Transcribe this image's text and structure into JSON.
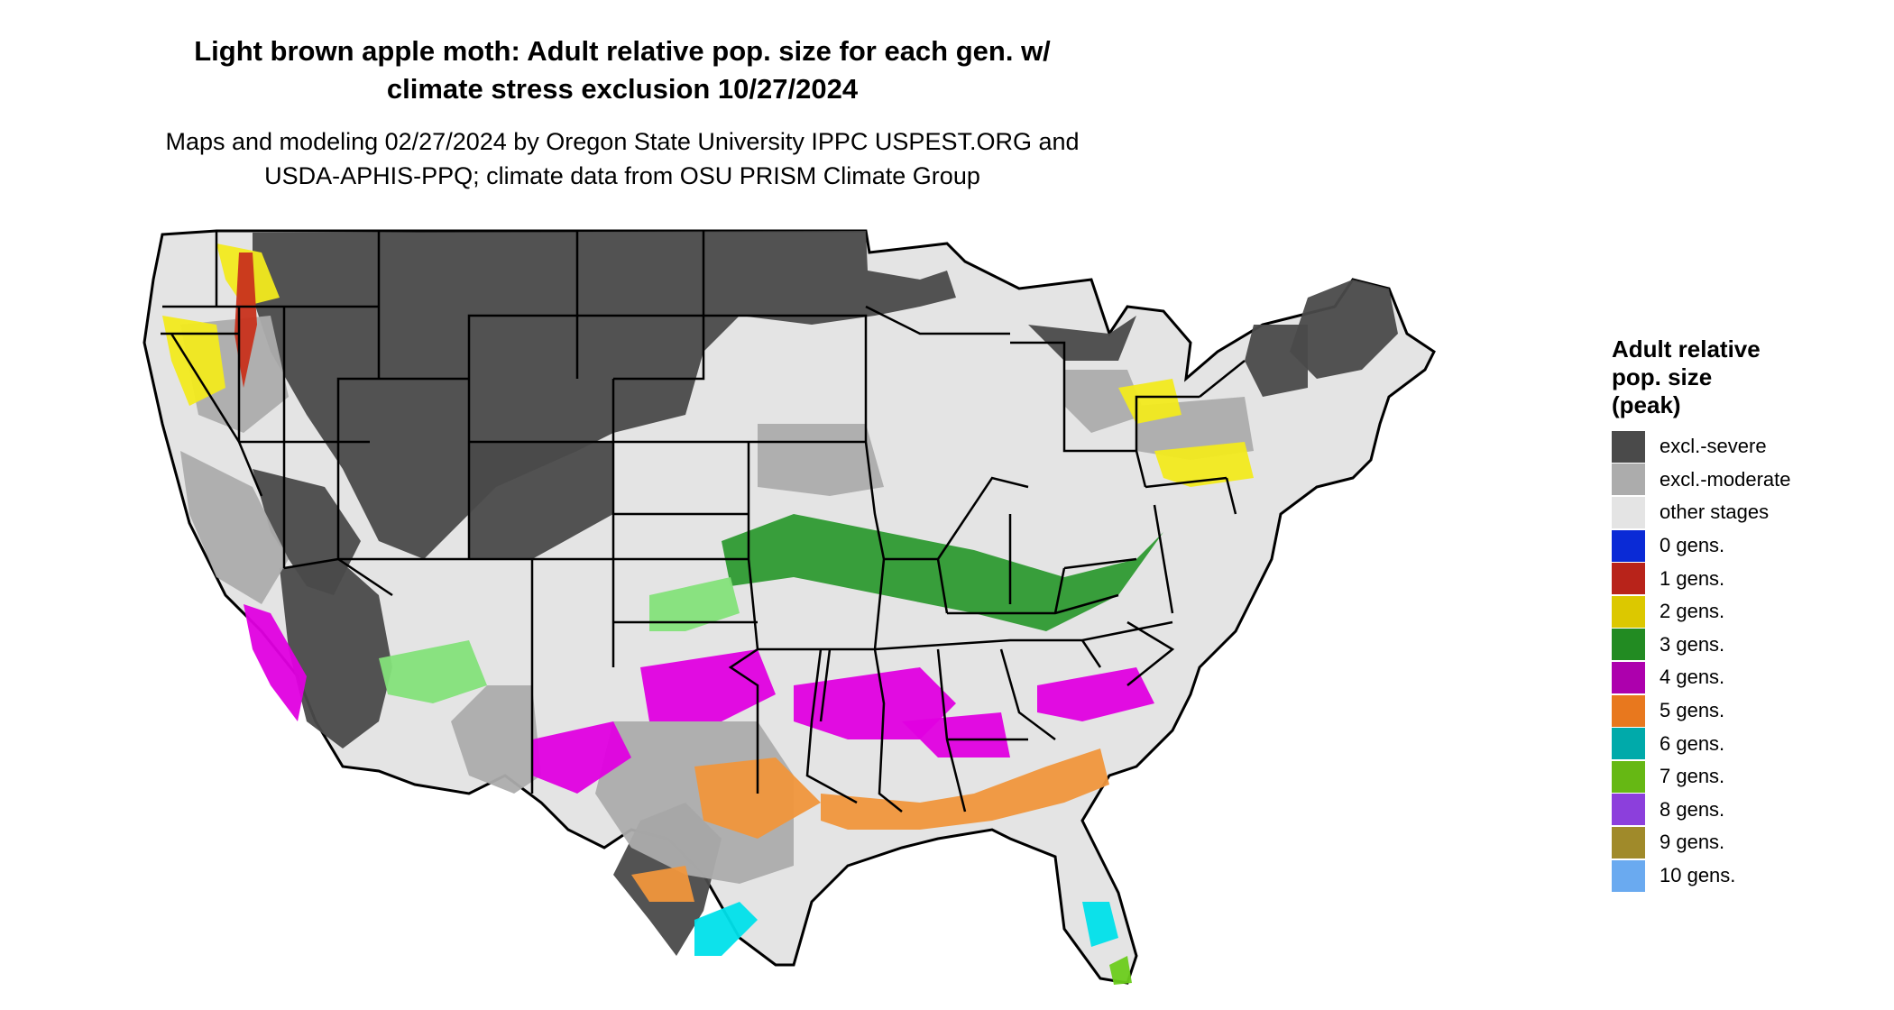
{
  "title": {
    "line1": "Light brown apple moth: Adult relative pop. size for each gen. w/",
    "line2": "climate stress exclusion 10/27/2024"
  },
  "subtitle": {
    "line1": "Maps and modeling 02/27/2024 by Oregon State University IPPC USPEST.ORG and",
    "line2": "USDA-APHIS-PPQ; climate data from OSU PRISM Climate Group"
  },
  "legend": {
    "title_lines": [
      "Adult relative",
      "pop. size",
      "(peak)"
    ],
    "items": [
      {
        "label": "excl.-severe",
        "color": "#4a4a4a"
      },
      {
        "label": "excl.-moderate",
        "color": "#acacac"
      },
      {
        "label": "other stages",
        "color": "#e4e4e4"
      },
      {
        "label": "0 gens.",
        "color": "#0a2ad6"
      },
      {
        "label": "1 gens.",
        "color": "#b8231a"
      },
      {
        "label": "2 gens.",
        "color": "#dcc800"
      },
      {
        "label": "3 gens.",
        "color": "#228b22"
      },
      {
        "label": "4 gens.",
        "color": "#ad00ad"
      },
      {
        "label": "5 gens.",
        "color": "#e8781e"
      },
      {
        "label": "6 gens.",
        "color": "#00aaaa"
      },
      {
        "label": "7 gens.",
        "color": "#66b814"
      },
      {
        "label": "8 gens.",
        "color": "#8c3fdc"
      },
      {
        "label": "9 gens.",
        "color": "#a08a2a"
      },
      {
        "label": "10 gens.",
        "color": "#6aaaf0"
      }
    ]
  },
  "map_colors": {
    "severe": "#4a4a4a",
    "moderate": "#acacac",
    "other": "#e4e4e4",
    "gen1": "#c8321c",
    "gen2": "#f2ea1e",
    "gen3_light": "#84e27a",
    "gen3_dark": "#2e9a32",
    "gen4": "#e000e0",
    "gen5": "#f0963c",
    "gen6": "#00e0ea",
    "gen7": "#6ccc1c",
    "border": "#000000"
  }
}
